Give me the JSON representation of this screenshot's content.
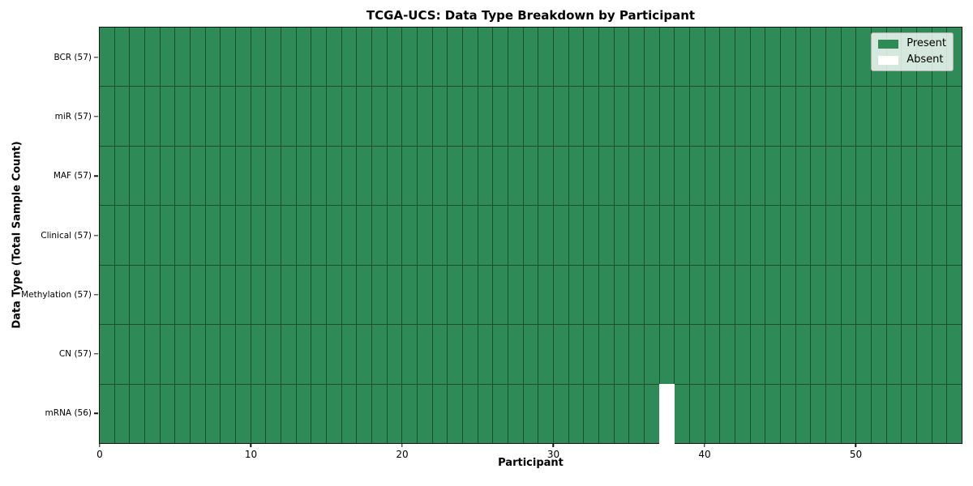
{
  "chart_data": {
    "type": "heatmap",
    "title": "TCGA-UCS: Data Type Breakdown by Participant",
    "xlabel": "Participant",
    "ylabel": "Data Type (Total Sample Count)",
    "n_participants": 57,
    "x_range": [
      0,
      57
    ],
    "x_ticks": [
      0,
      10,
      20,
      30,
      40,
      50
    ],
    "rows": [
      {
        "label": "BCR (57)",
        "data_type": "BCR",
        "sample_count": 57,
        "absent_participants": []
      },
      {
        "label": "miR (57)",
        "data_type": "miR",
        "sample_count": 57,
        "absent_participants": []
      },
      {
        "label": "MAF (57)",
        "data_type": "MAF",
        "sample_count": 57,
        "absent_participants": []
      },
      {
        "label": "Clinical (57)",
        "data_type": "Clinical",
        "sample_count": 57,
        "absent_participants": []
      },
      {
        "label": "Methylation (57)",
        "data_type": "Methylation",
        "sample_count": 57,
        "absent_participants": []
      },
      {
        "label": "CN (57)",
        "data_type": "CN",
        "sample_count": 57,
        "absent_participants": []
      },
      {
        "label": "mRNA (56)",
        "data_type": "mRNA",
        "sample_count": 56,
        "absent_participants": [
          37
        ]
      }
    ],
    "legend": {
      "position": "upper right",
      "entries": [
        {
          "label": "Present",
          "color": "#2e8b57"
        },
        {
          "label": "Absent",
          "color": "#ffffff"
        }
      ]
    },
    "colors": {
      "present": "#2e8b57",
      "absent": "#ffffff",
      "grid_line": "#1c4e30",
      "spine": "#111111"
    }
  }
}
